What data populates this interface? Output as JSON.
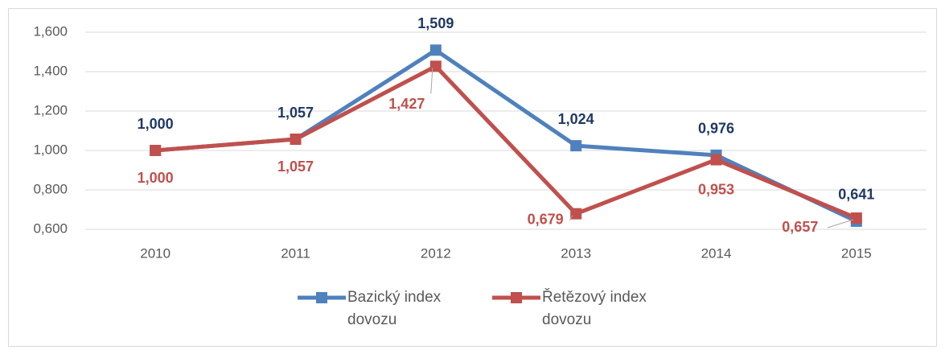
{
  "chart_data": {
    "type": "line",
    "categories": [
      "2010",
      "2011",
      "2012",
      "2013",
      "2014",
      "2015"
    ],
    "series": [
      {
        "name": "Bazický index dovozu",
        "color": "#4f81bd",
        "values": [
          1.0,
          1.057,
          1.509,
          1.024,
          0.976,
          0.641
        ],
        "value_labels": [
          "1,000",
          "1,057",
          "1,509",
          "1,024",
          "0,976",
          "0,641"
        ]
      },
      {
        "name": "Řetězový index dovozu",
        "color": "#c0504d",
        "values": [
          1.0,
          1.057,
          1.427,
          0.679,
          0.953,
          0.657
        ],
        "value_labels": [
          "1,000",
          "1,057",
          "1,427",
          "0,679",
          "0,953",
          "0,657"
        ]
      }
    ],
    "ylim": [
      0.6,
      1.6
    ],
    "yticks": [
      {
        "value": 0.6,
        "label": "0,600"
      },
      {
        "value": 0.8,
        "label": "0,800"
      },
      {
        "value": 1.0,
        "label": "1,000"
      },
      {
        "value": 1.2,
        "label": "1,200"
      },
      {
        "value": 1.4,
        "label": "1,400"
      },
      {
        "value": 1.6,
        "label": "1,600"
      }
    ],
    "grid": true,
    "legend": "bottom"
  }
}
